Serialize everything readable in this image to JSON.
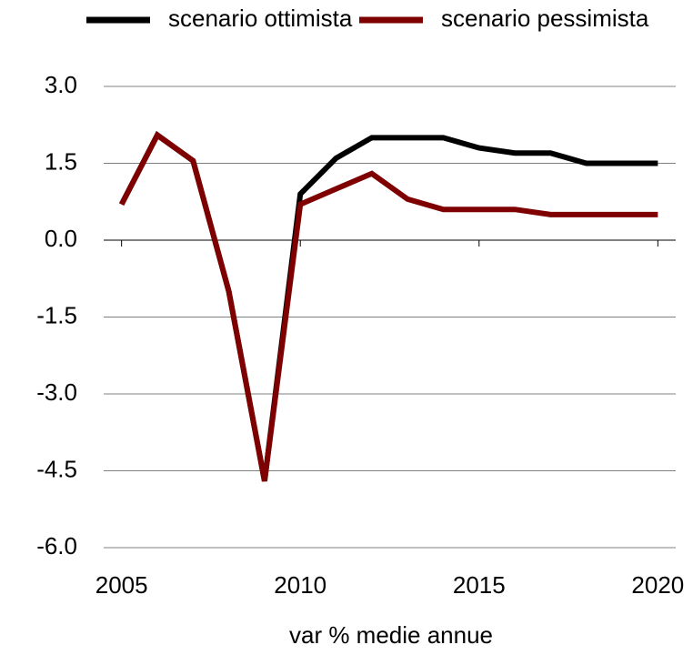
{
  "chart_data": {
    "type": "line",
    "x_label": "var % medie annue",
    "x": [
      2005,
      2006,
      2007,
      2008,
      2009,
      2010,
      2011,
      2012,
      2013,
      2014,
      2015,
      2016,
      2017,
      2018,
      2019,
      2020
    ],
    "series": [
      {
        "name": "scenario ottimista",
        "color": "#000000",
        "values": [
          0.7,
          2.05,
          1.55,
          -1.0,
          -4.7,
          0.9,
          1.6,
          2.0,
          2.0,
          2.0,
          1.8,
          1.7,
          1.7,
          1.5,
          1.5,
          1.5
        ]
      },
      {
        "name": "scenario pessimista",
        "color": "#7f0000",
        "values": [
          0.7,
          2.05,
          1.55,
          -1.0,
          -4.7,
          0.7,
          1.0,
          1.3,
          0.8,
          0.6,
          0.6,
          0.6,
          0.5,
          0.5,
          0.5,
          0.5
        ]
      }
    ],
    "xlim": [
      2004.5,
      2020.5
    ],
    "xticks": [
      2005,
      2010,
      2015,
      2020
    ],
    "ylim": [
      -6,
      3
    ],
    "yticks": [
      {
        "value": 3,
        "label": "3.0"
      },
      {
        "value": 1.5,
        "label": "1.5"
      },
      {
        "value": 0,
        "label": "0.0"
      },
      {
        "value": -1.5,
        "label": "-1.5"
      },
      {
        "value": -3,
        "label": "-3.0"
      },
      {
        "value": -4.5,
        "label": "-4.5"
      },
      {
        "value": -6,
        "label": "-6.0"
      }
    ],
    "grid": true,
    "legend": "top"
  }
}
